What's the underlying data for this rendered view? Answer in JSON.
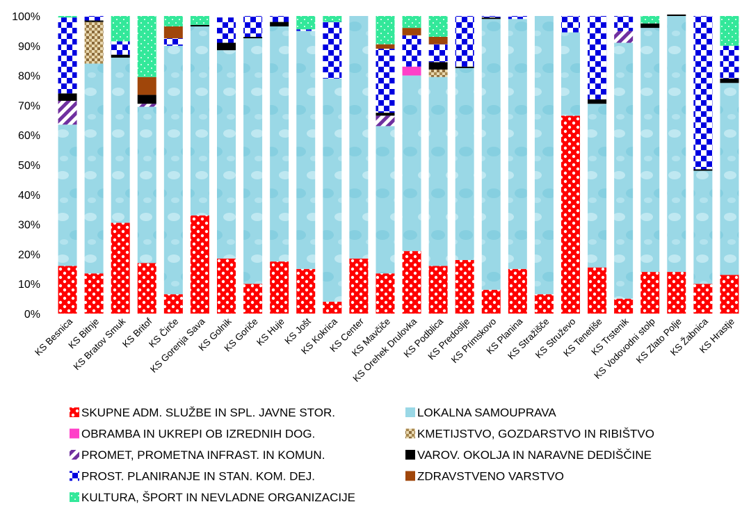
{
  "chart_data": {
    "type": "bar",
    "stacked": true,
    "percent_stacked": true,
    "title": "",
    "xlabel": "",
    "ylabel": "",
    "ylim": [
      0,
      100
    ],
    "y_ticks": [
      "0%",
      "10%",
      "20%",
      "30%",
      "40%",
      "50%",
      "60%",
      "70%",
      "80%",
      "90%",
      "100%"
    ],
    "grid": false,
    "legend_position": "bottom",
    "categories": [
      "KS Besnica",
      "KS Bitnje",
      "KS Bratov Smuk",
      "KS Britof",
      "KS Čirče",
      "KS Gorenja Sava",
      "KS Golnik",
      "KS Goriče",
      "KS Huje",
      "KS Jošt",
      "KS Kokrica",
      "KS Center",
      "KS Mavčiče",
      "KS Orehek Drulovka",
      "KS Podblica",
      "KS Predoslje",
      "KS Primskovo",
      "KS Planina",
      "KS Stražišče",
      "KS Struževo",
      "KS Tenetiše",
      "KS Trstenik",
      "KS Vodovodni stolp",
      "KS Zlato Polje",
      "KS Žabnica",
      "KS Hrastje"
    ],
    "series": [
      {
        "name": "SKUPNE ADM. SLUŽBE IN SPL. JAVNE STOR.",
        "color": "#ff0000",
        "pattern": "checker",
        "values": [
          16,
          13.5,
          30.5,
          17,
          6.5,
          33,
          18.5,
          10,
          17.5,
          15,
          4,
          18.5,
          13.5,
          21,
          16,
          18,
          8,
          15,
          6.5,
          66.5,
          15.5,
          5,
          14,
          14,
          10,
          13
        ]
      },
      {
        "name": "LOKALNA SAMOUPRAVA",
        "color": "#9ad8e6",
        "pattern": "water",
        "values": [
          47.5,
          70.5,
          55.5,
          52.5,
          83.5,
          63.5,
          70,
          82.5,
          79,
          80,
          75,
          81.5,
          49.5,
          59,
          63.5,
          64.5,
          91,
          84,
          93.5,
          28,
          55,
          86,
          82,
          86,
          38,
          64.5
        ]
      },
      {
        "name": "OBRAMBA IN UKREPI OB IZREDNIH DOG.",
        "color": "#ff3fc8",
        "pattern": "solid",
        "values": [
          0,
          0,
          0,
          0,
          0,
          0,
          0,
          0,
          0,
          0,
          0,
          0,
          0,
          3,
          0,
          0,
          0,
          0,
          0,
          0,
          0,
          0,
          0,
          0,
          0,
          0
        ]
      },
      {
        "name": "KMETIJSTVO, GOZDARSTVO IN RIBIŠTVO",
        "color": "#c8a46e",
        "pattern": "tweed",
        "values": [
          0,
          14,
          0,
          0,
          0,
          0,
          0,
          0,
          0,
          0,
          0,
          0,
          0,
          0,
          2.5,
          0,
          0,
          0,
          0,
          0,
          0,
          0,
          0,
          0,
          0,
          0
        ]
      },
      {
        "name": "PROMET, PROMETNA INFRAST. IN KOMUN.",
        "color": "#7030a0",
        "pattern": "diagonal",
        "values": [
          8,
          0,
          0,
          1,
          0,
          0,
          0,
          0,
          0,
          0,
          0,
          0,
          3.5,
          0,
          0,
          0,
          0,
          0,
          0,
          0,
          0,
          4,
          0,
          0,
          0,
          0
        ]
      },
      {
        "name": "VAROV. OKOLJA IN NARAVNE DEDIŠČINE",
        "color": "#000000",
        "pattern": "solid",
        "values": [
          2.5,
          0.5,
          1,
          3,
          0,
          0.5,
          2.5,
          0.5,
          1.5,
          0,
          0,
          0,
          1,
          0,
          2.5,
          0.5,
          0.5,
          0,
          0,
          0,
          1.5,
          0,
          1.5,
          0.5,
          0.5,
          1.5
        ]
      },
      {
        "name": "PROST. PLANIRANJE IN STAN. KOM. DEJ.",
        "color": "#0000e0",
        "pattern": "checker",
        "values": [
          25.5,
          1.5,
          4.5,
          0,
          2.5,
          0,
          8.5,
          7,
          2,
          0.5,
          19,
          0,
          21.5,
          10.5,
          6,
          17,
          0.5,
          1,
          0,
          5.5,
          28,
          5,
          0,
          0,
          51.5,
          11
        ]
      },
      {
        "name": "ZDRAVSTVENO VARSTVO",
        "color": "#a0460a",
        "pattern": "solid",
        "values": [
          0,
          0,
          0,
          6,
          4,
          0,
          0,
          0,
          0,
          0,
          0,
          0,
          1.5,
          2.5,
          2.5,
          0,
          0,
          0,
          0,
          0,
          0,
          0,
          0,
          0,
          0,
          0
        ]
      },
      {
        "name": "KULTURA, ŠPORT IN NEVLADNE ORGANIZACIJE",
        "color": "#33e89a",
        "pattern": "dots",
        "values": [
          0.5,
          0,
          8.5,
          20.5,
          3.5,
          3,
          0,
          0,
          0,
          4.5,
          2,
          0,
          9.5,
          4,
          7,
          0,
          0,
          0,
          0,
          0,
          0,
          0,
          2.5,
          0,
          0,
          10
        ]
      }
    ]
  }
}
